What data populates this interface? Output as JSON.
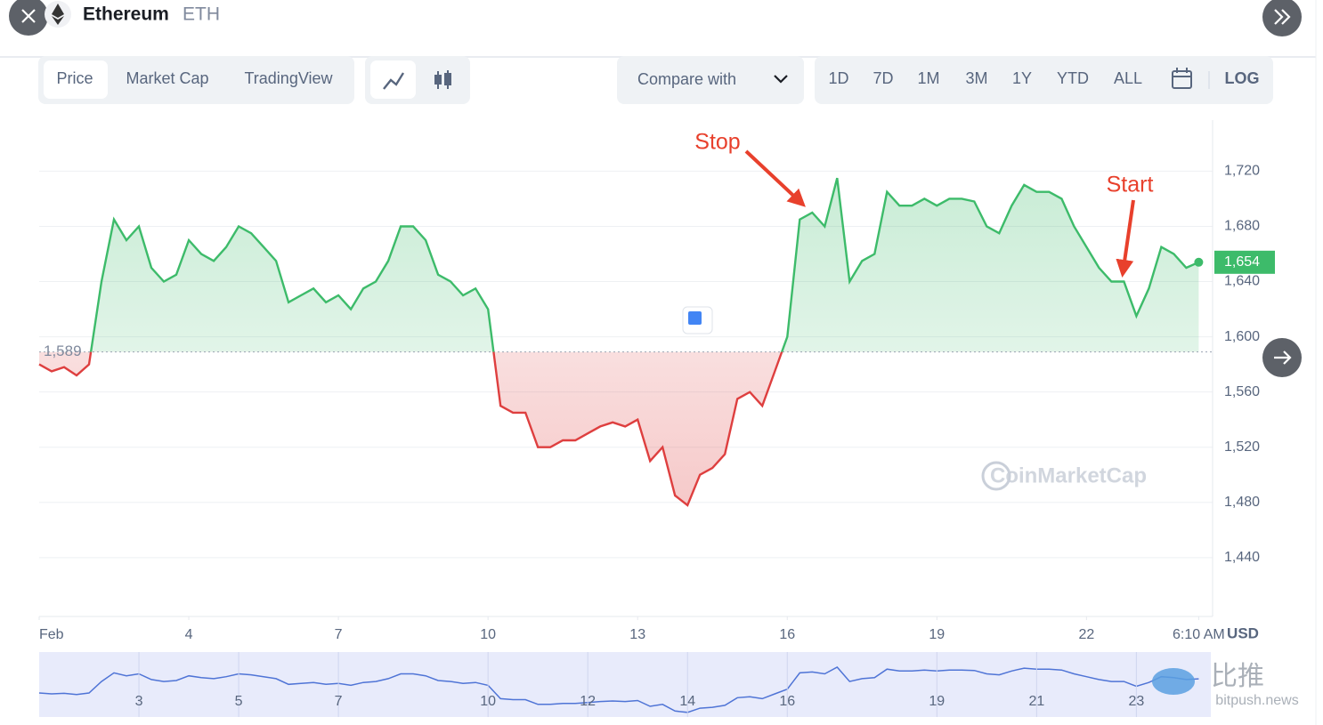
{
  "header": {
    "name": "Ethereum",
    "symbol": "ETH"
  },
  "tabs": [
    "Price",
    "Market Cap",
    "TradingView"
  ],
  "compare": "Compare with",
  "ranges": [
    "1D",
    "7D",
    "1M",
    "3M",
    "1Y",
    "YTD",
    "ALL"
  ],
  "log": "LOG",
  "chart_data": {
    "type": "line",
    "x": [
      1,
      1.25,
      1.5,
      1.75,
      2,
      2.25,
      2.5,
      2.75,
      3,
      3.25,
      3.5,
      3.75,
      4,
      4.25,
      4.5,
      4.75,
      5,
      5.25,
      5.5,
      5.75,
      6,
      6.25,
      6.5,
      6.75,
      7,
      7.25,
      7.5,
      7.75,
      8,
      8.25,
      8.5,
      8.75,
      9,
      9.25,
      9.5,
      9.75,
      10,
      10.25,
      10.5,
      10.75,
      11,
      11.25,
      11.5,
      11.75,
      12,
      12.25,
      12.5,
      12.75,
      13,
      13.25,
      13.5,
      13.75,
      14,
      14.25,
      14.5,
      14.75,
      15,
      15.25,
      15.5,
      15.75,
      16,
      16.25,
      16.5,
      16.75,
      17,
      17.25,
      17.5,
      17.75,
      18,
      18.25,
      18.5,
      18.75,
      19,
      19.25,
      19.5,
      19.75,
      20,
      20.25,
      20.5,
      20.75,
      21,
      21.25,
      21.5,
      21.75,
      22,
      22.25,
      22.5,
      22.75,
      23,
      23.25,
      23.5,
      23.75,
      24,
      24.25
    ],
    "values": [
      1580,
      1575,
      1578,
      1572,
      1580,
      1640,
      1685,
      1670,
      1680,
      1650,
      1640,
      1645,
      1670,
      1660,
      1655,
      1665,
      1680,
      1675,
      1665,
      1655,
      1625,
      1630,
      1635,
      1625,
      1630,
      1620,
      1635,
      1640,
      1655,
      1680,
      1680,
      1670,
      1645,
      1640,
      1630,
      1635,
      1620,
      1550,
      1545,
      1545,
      1520,
      1520,
      1525,
      1525,
      1530,
      1535,
      1538,
      1535,
      1540,
      1510,
      1520,
      1485,
      1478,
      1500,
      1505,
      1515,
      1555,
      1560,
      1550,
      1575,
      1600,
      1685,
      1690,
      1680,
      1715,
      1640,
      1655,
      1660,
      1705,
      1695,
      1695,
      1700,
      1695,
      1700,
      1700,
      1698,
      1680,
      1675,
      1695,
      1710,
      1705,
      1705,
      1700,
      1680,
      1665,
      1650,
      1640,
      1640,
      1615,
      1635,
      1665,
      1660,
      1650,
      1654
    ],
    "xlim": [
      1,
      24.35
    ],
    "xticks": [
      {
        "value": 1,
        "label": "Feb"
      },
      4,
      7,
      10,
      13,
      16,
      19,
      22,
      {
        "value": 24.25,
        "label": "6:10 AM"
      }
    ],
    "ylim": [
      1398,
      1757
    ],
    "yticks": [
      {
        "value": 1440,
        "label": "1,440"
      },
      {
        "value": 1480,
        "label": "1,480"
      },
      {
        "value": 1520,
        "label": "1,520"
      },
      {
        "value": 1560,
        "label": "1,560"
      },
      {
        "value": 1600,
        "label": "1,600"
      },
      {
        "value": 1640,
        "label": "1,640"
      },
      {
        "value": 1680,
        "label": "1,680"
      },
      {
        "value": 1720,
        "label": "1,720"
      }
    ],
    "baseline": {
      "value": 1589,
      "label": "1,589"
    },
    "current": {
      "value": 1654,
      "label": "1,654"
    },
    "unit": "USD",
    "grid": true,
    "up_color": "#3dbb6a",
    "down_color": "#de3f3f",
    "annotations": [
      "Stop",
      "Start"
    ],
    "watermark": "CoinMarketCap",
    "navigator_xticks": [
      3,
      5,
      7,
      10,
      12,
      14,
      16,
      19,
      21,
      23
    ]
  },
  "source_mark": {
    "logo": "比推",
    "site": "bitpush.news"
  }
}
